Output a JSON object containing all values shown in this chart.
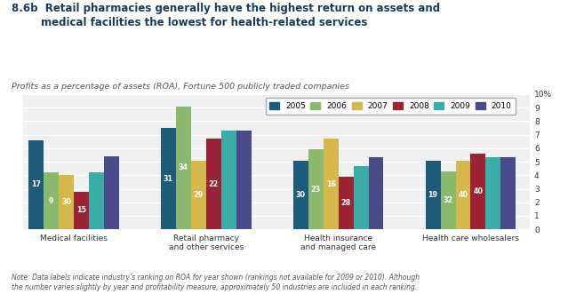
{
  "title_bold": "8.6b",
  "title_main": "Retail pharmacies generally have the highest return on assets and\nmedical facilities the lowest for health-related services",
  "subtitle": "Profits as a percentage of assets (ROA), Fortune 500 publicly traded companies",
  "note": "Note: Data labels indicate industry’s ranking on ROA for year shown (rankings not available for 2009 or 2010). Although\nthe number varies slightly by year and profitability measure, approximately 50 industries are included in each ranking.",
  "categories": [
    "Medical facilities",
    "Retail pharmacy\nand other services",
    "Health insurance\nand managed care",
    "Health care wholesalers"
  ],
  "years": [
    "2005",
    "2006",
    "2007",
    "2008",
    "2009",
    "2010"
  ],
  "colors": [
    "#1c5b7a",
    "#8ab96e",
    "#d4b84a",
    "#9b2335",
    "#3aada8",
    "#4a4a8a"
  ],
  "values": [
    [
      6.6,
      4.2,
      4.0,
      2.8,
      4.2,
      5.4
    ],
    [
      7.5,
      9.1,
      5.1,
      6.7,
      7.3,
      7.3
    ],
    [
      5.1,
      5.9,
      6.7,
      3.9,
      4.7,
      5.3
    ],
    [
      5.1,
      4.3,
      5.1,
      5.6,
      5.3,
      5.3
    ]
  ],
  "labels": [
    [
      "17",
      "9",
      "30",
      "15",
      "",
      ""
    ],
    [
      "31",
      "34",
      "29",
      "22",
      "",
      ""
    ],
    [
      "30",
      "23",
      "16",
      "28",
      "",
      ""
    ],
    [
      "19",
      "32",
      "40",
      "40",
      "",
      ""
    ]
  ],
  "ylim": [
    0,
    10
  ],
  "background_color": "#ffffff",
  "plot_background": "#f0f0f0",
  "title_color": "#1a3a5c",
  "subtitle_color": "#555555",
  "note_color": "#555555"
}
